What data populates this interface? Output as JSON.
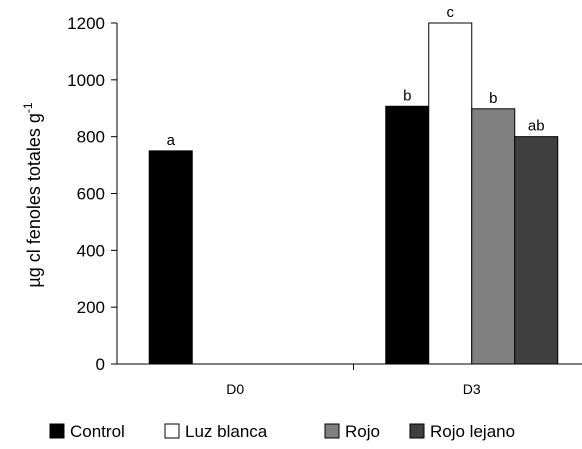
{
  "chart_data": {
    "type": "bar",
    "ylabel": "µg cl fenoles totales g",
    "ylabel_superscript": "-1",
    "ylim": [
      0,
      1200
    ],
    "yticks": [
      "0",
      "200",
      "400",
      "600",
      "800",
      "1000",
      "1200"
    ],
    "grid": false,
    "legend_position": "bottom",
    "categories": [
      "D0",
      "D3"
    ],
    "series": [
      {
        "name": "Control",
        "color": "#000000",
        "values": [
          750,
          907
        ],
        "labels": [
          "a",
          "b"
        ]
      },
      {
        "name": "Luz blanca",
        "color": "#ffffff",
        "values": [
          null,
          1200
        ],
        "labels": [
          null,
          "c"
        ]
      },
      {
        "name": "Rojo",
        "color": "#808080",
        "values": [
          null,
          898
        ],
        "labels": [
          null,
          "b"
        ]
      },
      {
        "name": "Rojo lejano",
        "color": "#404040",
        "values": [
          null,
          800
        ],
        "labels": [
          null,
          "ab"
        ]
      }
    ]
  }
}
